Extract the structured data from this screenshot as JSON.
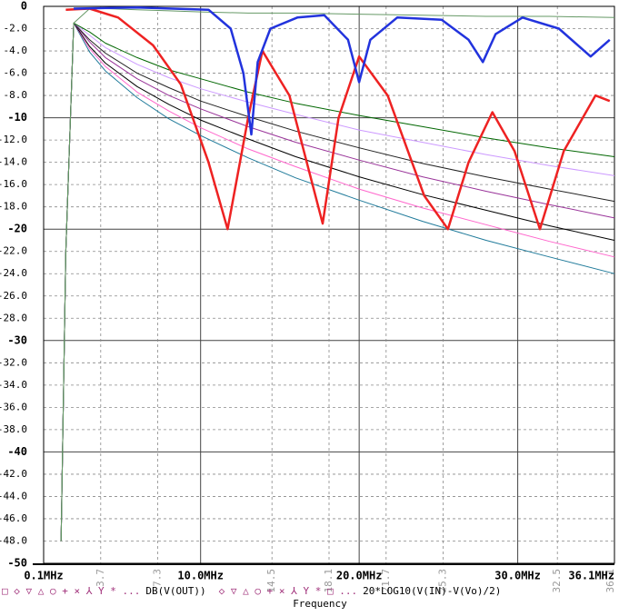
{
  "chart_data": {
    "type": "line",
    "x_label": "Frequency",
    "xlim": [
      0.1,
      36.1
    ],
    "ylim": [
      -50,
      0
    ],
    "xticks": [
      {
        "value": 0.1,
        "label": "0.1MHz"
      },
      {
        "value": 10,
        "label": "10.0MHz"
      },
      {
        "value": 20,
        "label": "20.0MHz"
      },
      {
        "value": 30,
        "label": "30.0MHz"
      },
      {
        "value": 36.1,
        "label": "36.1MHz"
      }
    ],
    "xticks_minor": [
      3.7,
      7.3,
      14.5,
      18.1,
      21.7,
      25.3,
      32.5,
      36.1
    ],
    "yticks": [
      0,
      {
        "value": -2,
        "label": "-2.0"
      },
      {
        "value": -4,
        "label": "-4.0"
      },
      {
        "value": -6,
        "label": "-6.0"
      },
      {
        "value": -8,
        "label": "-8.0"
      },
      -10,
      {
        "value": -12,
        "label": "-12.0"
      },
      {
        "value": -14,
        "label": "-14.0"
      },
      {
        "value": -16,
        "label": "-16.0"
      },
      {
        "value": -18,
        "label": "-18.0"
      },
      -20,
      {
        "value": -22,
        "label": "-22.0"
      },
      {
        "value": -24,
        "label": "-24.0"
      },
      {
        "value": -26,
        "label": "-26.0"
      },
      {
        "value": -28,
        "label": "-28.0"
      },
      -30,
      {
        "value": -32,
        "label": "-32.0"
      },
      {
        "value": -34,
        "label": "-34.0"
      },
      {
        "value": -36,
        "label": "-36.0"
      },
      {
        "value": -38,
        "label": "-38.0"
      },
      -40,
      {
        "value": -42,
        "label": "-42.0"
      },
      {
        "value": -44,
        "label": "-44.0"
      },
      {
        "value": -46,
        "label": "-46.0"
      },
      {
        "value": -48,
        "label": "-48.0"
      },
      -50
    ],
    "grid": true,
    "legend": [
      {
        "symbols": "□ ◇ ▽ △ ○ + × ⅄ Y * ...",
        "label": "DB(V(OUT))"
      },
      {
        "symbols": "◇ ▽ △ ○ + × ⅄ Y * □ ...",
        "label": "20*LOG10(V(IN)-V(Vo)/2)"
      }
    ],
    "series": [
      {
        "color": "#1f7a9a",
        "width": 1,
        "x": [
          1.2,
          1.5,
          2,
          3,
          4,
          6,
          8,
          10,
          13,
          16,
          20,
          24,
          28,
          32,
          36.1
        ],
        "values": [
          -48,
          -22,
          -1.5,
          -4.1,
          -5.8,
          -8.2,
          -10.1,
          -11.6,
          -13.6,
          -15.4,
          -17.4,
          -19.3,
          -21.0,
          -22.5,
          -24.0
        ]
      },
      {
        "color": "#ff66cc",
        "width": 1,
        "x": [
          1.2,
          1.5,
          2,
          3,
          4,
          6,
          8,
          10,
          13,
          16,
          20,
          24,
          28,
          32,
          36.1
        ],
        "values": [
          -48,
          -22,
          -1.5,
          -3.8,
          -5.4,
          -7.7,
          -9.4,
          -10.9,
          -12.8,
          -14.4,
          -16.4,
          -18.1,
          -19.6,
          -21.1,
          -22.5
        ]
      },
      {
        "color": "#000000",
        "width": 1,
        "x": [
          1.2,
          1.5,
          2,
          3,
          4,
          6,
          8,
          10,
          13,
          16,
          20,
          24,
          28,
          32,
          36.1
        ],
        "values": [
          -48,
          -22,
          -1.5,
          -3.6,
          -5.1,
          -7.2,
          -8.8,
          -10.2,
          -11.9,
          -13.5,
          -15.3,
          -16.9,
          -18.3,
          -19.7,
          -21.0
        ]
      },
      {
        "color": "#993399",
        "width": 1,
        "x": [
          1.2,
          1.5,
          2,
          3,
          4,
          6,
          8,
          10,
          13,
          16,
          20,
          24,
          28,
          32,
          36.1
        ],
        "values": [
          -48,
          -22,
          -1.5,
          -3.2,
          -4.6,
          -6.5,
          -8.0,
          -9.2,
          -10.8,
          -12.2,
          -13.8,
          -15.3,
          -16.6,
          -17.8,
          -19.0
        ]
      },
      {
        "color": "#222222",
        "width": 1,
        "x": [
          1.2,
          1.5,
          2,
          3,
          4,
          6,
          8,
          10,
          13,
          16,
          20,
          24,
          28,
          32,
          36.1
        ],
        "values": [
          -48,
          -22,
          -1.5,
          -3.0,
          -4.2,
          -6.0,
          -7.3,
          -8.5,
          -9.9,
          -11.2,
          -12.7,
          -14.1,
          -15.3,
          -16.4,
          -17.5
        ]
      },
      {
        "color": "#cc99ff",
        "width": 1,
        "x": [
          1.2,
          1.5,
          2,
          3,
          4,
          6,
          8,
          10,
          13,
          16,
          20,
          24,
          28,
          32,
          36.1
        ],
        "values": [
          -48,
          -22,
          -1.5,
          -2.6,
          -3.7,
          -5.2,
          -6.4,
          -7.4,
          -8.6,
          -9.7,
          -11.1,
          -12.2,
          -13.3,
          -14.3,
          -15.2
        ]
      },
      {
        "color": "#006600",
        "width": 1,
        "x": [
          1.2,
          1.5,
          2,
          3,
          4,
          6,
          8,
          10,
          13,
          16,
          20,
          24,
          28,
          32,
          36.1
        ],
        "values": [
          -48,
          -22,
          -1.5,
          -2.3,
          -3.3,
          -4.6,
          -5.7,
          -6.5,
          -7.7,
          -8.7,
          -9.8,
          -10.8,
          -11.8,
          -12.7,
          -13.5
        ]
      },
      {
        "color": "#669966",
        "width": 1,
        "x": [
          1.2,
          1.5,
          2,
          3,
          4,
          6,
          8,
          10,
          13,
          16,
          20,
          24,
          28,
          32,
          36.1
        ],
        "values": [
          -48,
          -22,
          -1.5,
          -0.2,
          -0.2,
          -0.3,
          -0.4,
          -0.5,
          -0.6,
          -0.6,
          -0.7,
          -0.8,
          -0.9,
          -0.9,
          -1.0
        ]
      },
      {
        "color": "#ee2222",
        "width": 2.5,
        "x": [
          1.5,
          3,
          4.8,
          7,
          8.75,
          10.5,
          11.7,
          13,
          13.9,
          15.6,
          17.7,
          18.7,
          20,
          21.8,
          24.1,
          25.6,
          26.9,
          28.4,
          29.8,
          31.4,
          32.9,
          34.9,
          35.8
        ],
        "values": [
          -0.3,
          -0.2,
          -1,
          -3.5,
          -7,
          -14,
          -20,
          -10,
          -4,
          -8,
          -19.5,
          -10,
          -4.5,
          -8,
          -17,
          -20,
          -14,
          -9.5,
          -13,
          -20,
          -13,
          -8,
          -8.5
        ]
      },
      {
        "color": "#2233dd",
        "width": 2.5,
        "x": [
          2,
          6,
          10.5,
          11.9,
          12.7,
          13.2,
          13.6,
          14.4,
          16.1,
          17.8,
          19.3,
          20,
          20.7,
          22.4,
          25.2,
          26.9,
          27.8,
          28.6,
          30.3,
          32.6,
          34.6,
          35.8
        ],
        "values": [
          -0.2,
          -0.1,
          -0.3,
          -2,
          -6,
          -11.5,
          -5,
          -2,
          -1,
          -0.8,
          -3,
          -6.8,
          -3,
          -1,
          -1.2,
          -3,
          -5,
          -2.5,
          -1,
          -2,
          -4.5,
          -3
        ]
      }
    ]
  }
}
